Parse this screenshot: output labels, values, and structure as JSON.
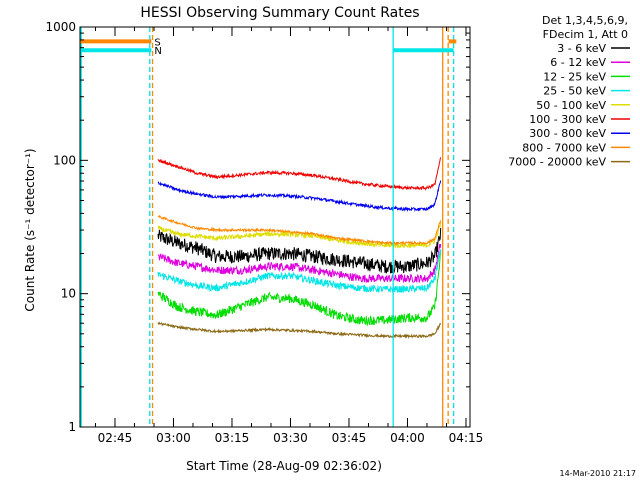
{
  "chart_data": {
    "type": "line",
    "title": "HESSI Observing Summary Count Rates",
    "xlabel": "Start Time (28-Aug-09 02:36:02)",
    "ylabel": "Count Rate (s⁻¹ detector⁻¹)",
    "ylog": true,
    "ylim": [
      1,
      1000
    ],
    "xlim_minutes": [
      0,
      100
    ],
    "y_ticks": [
      {
        "value": 1,
        "label": "1"
      },
      {
        "value": 10,
        "label": "10"
      },
      {
        "value": 100,
        "label": "100"
      },
      {
        "value": 1000,
        "label": "1000"
      }
    ],
    "x_ticks": [
      {
        "minute": 8.97,
        "label": "02:45"
      },
      {
        "minute": 23.97,
        "label": "03:00"
      },
      {
        "minute": 38.97,
        "label": "03:15"
      },
      {
        "minute": 53.97,
        "label": "03:30"
      },
      {
        "minute": 68.97,
        "label": "03:45"
      },
      {
        "minute": 83.97,
        "label": "04:00"
      },
      {
        "minute": 98.97,
        "label": "04:15"
      }
    ],
    "legend": {
      "placement": "right",
      "header": [
        "Det 1,3,4,5,6,9,",
        "FDecim 1, Att 0"
      ],
      "entries": [
        {
          "label": "3 - 6 keV",
          "color": "#000000"
        },
        {
          "label": "6 - 12 keV",
          "color": "#dd00dd"
        },
        {
          "label": "12 - 25 keV",
          "color": "#00dd00"
        },
        {
          "label": "25 - 50 keV",
          "color": "#00e5e5"
        },
        {
          "label": "50 - 100 keV",
          "color": "#dddd00"
        },
        {
          "label": "100 - 300 keV",
          "color": "#ee0000"
        },
        {
          "label": "300 - 800 keV",
          "color": "#0000ee"
        },
        {
          "label": "800 - 7000 keV",
          "color": "#ff8800"
        },
        {
          "label": "7000 - 20000 keV",
          "color": "#8b6914"
        }
      ]
    },
    "data_start_minute": 20.0,
    "data_end_minute": 92.5,
    "series": [
      {
        "label": "3 - 6 keV",
        "color": "#000000",
        "noise": 0.12,
        "points": [
          [
            20.0,
            27
          ],
          [
            25,
            24
          ],
          [
            30,
            22
          ],
          [
            35,
            19
          ],
          [
            42,
            19
          ],
          [
            48,
            20
          ],
          [
            54,
            20
          ],
          [
            60,
            19
          ],
          [
            66,
            18
          ],
          [
            72,
            17
          ],
          [
            78,
            16
          ],
          [
            84,
            16
          ],
          [
            89,
            17
          ],
          [
            91,
            19
          ],
          [
            92.5,
            28
          ]
        ]
      },
      {
        "label": "6 - 12 keV",
        "color": "#dd00dd",
        "noise": 0.07,
        "points": [
          [
            20.0,
            19
          ],
          [
            25,
            17
          ],
          [
            30,
            16
          ],
          [
            35,
            15
          ],
          [
            42,
            15
          ],
          [
            48,
            16
          ],
          [
            54,
            16
          ],
          [
            60,
            15
          ],
          [
            66,
            14
          ],
          [
            72,
            13
          ],
          [
            78,
            13
          ],
          [
            84,
            13
          ],
          [
            89,
            13
          ],
          [
            91,
            15
          ],
          [
            92.5,
            24
          ]
        ]
      },
      {
        "label": "12 - 25 keV",
        "color": "#00dd00",
        "noise": 0.08,
        "points": [
          [
            20.0,
            10
          ],
          [
            25,
            8
          ],
          [
            30,
            7.3
          ],
          [
            35,
            6.9
          ],
          [
            42,
            8.2
          ],
          [
            48,
            9.4
          ],
          [
            54,
            9.2
          ],
          [
            60,
            8.2
          ],
          [
            66,
            6.8
          ],
          [
            72,
            6.3
          ],
          [
            78,
            6.3
          ],
          [
            84,
            6.6
          ],
          [
            89,
            6.6
          ],
          [
            91,
            8
          ],
          [
            92.5,
            20
          ]
        ]
      },
      {
        "label": "25 - 50 keV",
        "color": "#00e5e5",
        "noise": 0.06,
        "points": [
          [
            20.0,
            14
          ],
          [
            25,
            12.5
          ],
          [
            30,
            11.5
          ],
          [
            35,
            11
          ],
          [
            42,
            12.2
          ],
          [
            48,
            13.6
          ],
          [
            54,
            13.6
          ],
          [
            60,
            12.5
          ],
          [
            66,
            11.5
          ],
          [
            72,
            11
          ],
          [
            78,
            10.8
          ],
          [
            84,
            10.8
          ],
          [
            89,
            11
          ],
          [
            91,
            13
          ],
          [
            92.5,
            22
          ]
        ]
      },
      {
        "label": "50 - 100 keV",
        "color": "#dddd00",
        "noise": 0.04,
        "points": [
          [
            20.0,
            31
          ],
          [
            25,
            28
          ],
          [
            30,
            27
          ],
          [
            35,
            26
          ],
          [
            42,
            27
          ],
          [
            48,
            28
          ],
          [
            54,
            28
          ],
          [
            60,
            27
          ],
          [
            66,
            25
          ],
          [
            72,
            24
          ],
          [
            78,
            23
          ],
          [
            84,
            23
          ],
          [
            89,
            23
          ],
          [
            91,
            25
          ],
          [
            92.5,
            34
          ]
        ]
      },
      {
        "label": "100 - 300 keV",
        "color": "#ee0000",
        "noise": 0.025,
        "points": [
          [
            20.0,
            100
          ],
          [
            25,
            90
          ],
          [
            30,
            80
          ],
          [
            35,
            75
          ],
          [
            42,
            78
          ],
          [
            48,
            81
          ],
          [
            54,
            80
          ],
          [
            60,
            77
          ],
          [
            66,
            72
          ],
          [
            72,
            67
          ],
          [
            78,
            64
          ],
          [
            84,
            62
          ],
          [
            89,
            62
          ],
          [
            91,
            66
          ],
          [
            92.5,
            105
          ]
        ]
      },
      {
        "label": "300 - 800 keV",
        "color": "#0000ee",
        "noise": 0.025,
        "points": [
          [
            20.0,
            68
          ],
          [
            25,
            60
          ],
          [
            30,
            56
          ],
          [
            35,
            53
          ],
          [
            42,
            54
          ],
          [
            48,
            55
          ],
          [
            54,
            54
          ],
          [
            60,
            52
          ],
          [
            66,
            49
          ],
          [
            72,
            46
          ],
          [
            78,
            44
          ],
          [
            84,
            43
          ],
          [
            89,
            43
          ],
          [
            91,
            47
          ],
          [
            92.5,
            72
          ]
        ]
      },
      {
        "label": "800 - 7000 keV",
        "color": "#ff8800",
        "noise": 0.02,
        "points": [
          [
            20.0,
            38
          ],
          [
            25,
            34
          ],
          [
            30,
            31
          ],
          [
            35,
            30
          ],
          [
            42,
            30
          ],
          [
            48,
            30
          ],
          [
            54,
            29
          ],
          [
            60,
            28
          ],
          [
            66,
            26
          ],
          [
            72,
            25
          ],
          [
            78,
            24
          ],
          [
            84,
            24
          ],
          [
            89,
            24
          ],
          [
            91,
            26
          ],
          [
            92.5,
            36
          ]
        ]
      },
      {
        "label": "7000 - 20000 keV",
        "color": "#8b6914",
        "noise": 0.02,
        "points": [
          [
            20.0,
            6
          ],
          [
            25,
            5.6
          ],
          [
            30,
            5.4
          ],
          [
            35,
            5.2
          ],
          [
            42,
            5.3
          ],
          [
            48,
            5.4
          ],
          [
            54,
            5.3
          ],
          [
            60,
            5.2
          ],
          [
            66,
            5.0
          ],
          [
            72,
            4.9
          ],
          [
            78,
            4.8
          ],
          [
            84,
            4.8
          ],
          [
            89,
            4.8
          ],
          [
            91,
            5
          ],
          [
            92.5,
            6
          ]
        ]
      }
    ],
    "flag_bars": [
      {
        "label": "S",
        "color": "#ff8800",
        "y": 780,
        "segments": [
          [
            0,
            18.3
          ],
          [
            94.5,
            96.5
          ]
        ]
      },
      {
        "label": "N",
        "color": "#00e5e5",
        "y": 670,
        "segments": [
          [
            0,
            18.3
          ],
          [
            80.3,
            95.8
          ]
        ]
      }
    ],
    "vertical_markers": [
      {
        "minute": 0.3,
        "color": "#00e5e5",
        "style": "solid"
      },
      {
        "minute": 17.9,
        "color": "#00e5e5",
        "style": "dashed"
      },
      {
        "minute": 18.6,
        "color": "#ff8800",
        "style": "dashed"
      },
      {
        "minute": 80.3,
        "color": "#00e5e5",
        "style": "solid"
      },
      {
        "minute": 93.0,
        "color": "#ff8800",
        "style": "solid"
      },
      {
        "minute": 94.4,
        "color": "#ff8800",
        "style": "dashed"
      },
      {
        "minute": 95.8,
        "color": "#00e5e5",
        "style": "dashed"
      }
    ]
  },
  "footer": {
    "generated": "14-Mar-2010 21:17"
  }
}
